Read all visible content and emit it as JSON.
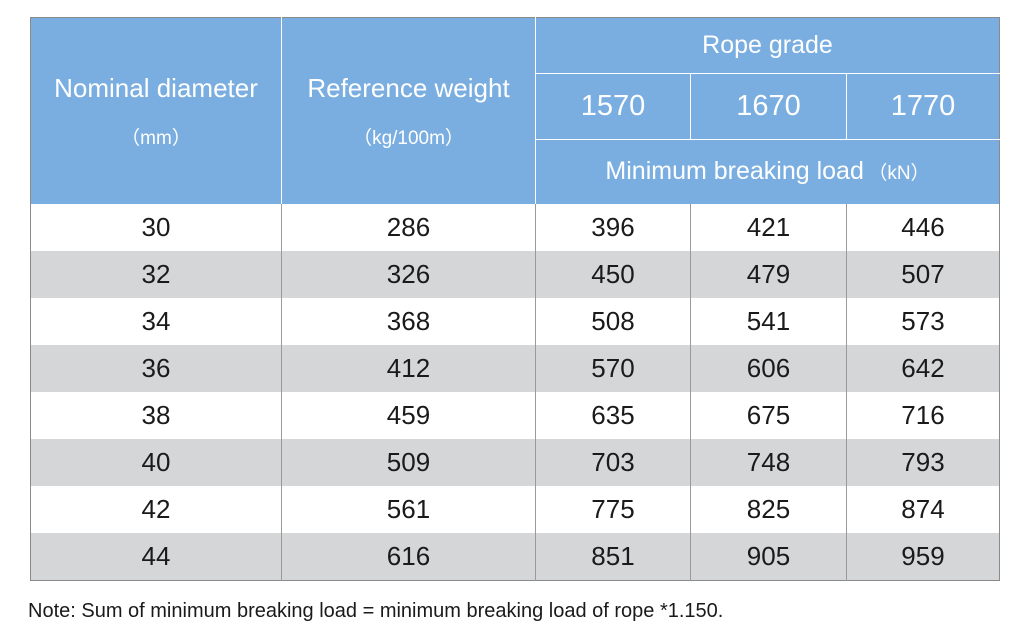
{
  "header": {
    "col_diameter": "Nominal diameter",
    "col_diameter_unit": "（mm）",
    "col_weight": "Reference weight",
    "col_weight_unit": "（kg/100m）",
    "group_title": "Rope grade",
    "grades": [
      "1570",
      "1670",
      "1770"
    ],
    "load_label": "Minimum breaking load",
    "load_unit": "（kN）"
  },
  "rows": [
    [
      "30",
      "286",
      "396",
      "421",
      "446"
    ],
    [
      "32",
      "326",
      "450",
      "479",
      "507"
    ],
    [
      "34",
      "368",
      "508",
      "541",
      "573"
    ],
    [
      "36",
      "412",
      "570",
      "606",
      "642"
    ],
    [
      "38",
      "459",
      "635",
      "675",
      "716"
    ],
    [
      "40",
      "509",
      "703",
      "748",
      "793"
    ],
    [
      "42",
      "561",
      "775",
      "825",
      "874"
    ],
    [
      "44",
      "616",
      "851",
      "905",
      "959"
    ]
  ],
  "note": "Note: Sum of minimum breaking load = minimum breaking load of rope *1.150.",
  "colors": {
    "header_bg": "#7aaee0",
    "stripe": "#d4d6d7"
  }
}
